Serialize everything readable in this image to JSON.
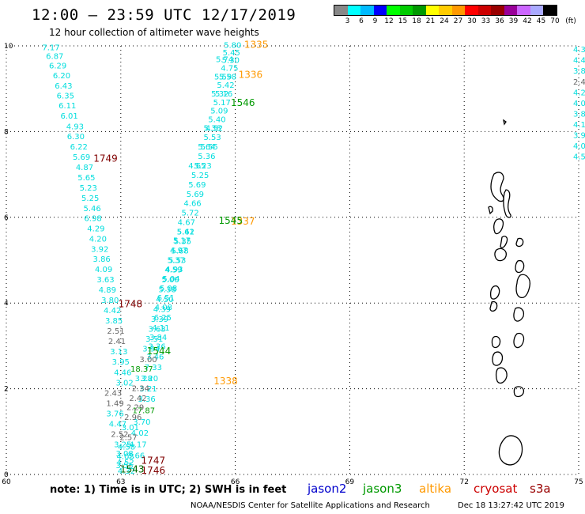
{
  "header": {
    "title": "12:00 – 23:59 UTC 12/17/2019",
    "subtitle": "12 hour collection of altimeter wave heights"
  },
  "legend": {
    "unit": "(ft)",
    "colors": [
      "#888888",
      "#00ffff",
      "#00bbff",
      "#0000ff",
      "#00ff00",
      "#00cc00",
      "#009900",
      "#ffff00",
      "#ffcc00",
      "#ff9900",
      "#ff0000",
      "#cc0000",
      "#990000",
      "#990099",
      "#cc66ff",
      "#aaaaff",
      "#000000"
    ],
    "labels": [
      "3",
      "6",
      "9",
      "12",
      "15",
      "18",
      "21",
      "24",
      "27",
      "30",
      "33",
      "36",
      "39",
      "42",
      "45",
      "70"
    ]
  },
  "map": {
    "x_ticks": [
      "60",
      "63",
      "66",
      "69",
      "72",
      "75"
    ],
    "y_ticks": [
      "0",
      "2",
      "4",
      "6",
      "8",
      "10"
    ],
    "x_values": [
      60,
      63,
      66,
      69,
      72,
      75
    ],
    "y_values": [
      0,
      2,
      4,
      6,
      8,
      10
    ],
    "lon_range": [
      60,
      75
    ],
    "lat_range": [
      0,
      10
    ],
    "colors": {
      "cyan": "#00dddd",
      "gray": "#666666",
      "green": "#009900",
      "darkgreen": "#006600",
      "orange": "#ff9900",
      "maroon": "#800000"
    },
    "wave_labels": [
      {
        "t": "7.17",
        "lon": 61.17,
        "lat": 9.9,
        "c": "cyan"
      },
      {
        "t": "6.87",
        "lon": 61.27,
        "lat": 9.7,
        "c": "cyan"
      },
      {
        "t": "6.29",
        "lon": 61.35,
        "lat": 9.47,
        "c": "cyan"
      },
      {
        "t": "6.20",
        "lon": 61.45,
        "lat": 9.24,
        "c": "cyan"
      },
      {
        "t": "6.43",
        "lon": 61.5,
        "lat": 9.0,
        "c": "cyan"
      },
      {
        "t": "6.35",
        "lon": 61.55,
        "lat": 8.77,
        "c": "cyan"
      },
      {
        "t": "6.11",
        "lon": 61.6,
        "lat": 8.54,
        "c": "cyan"
      },
      {
        "t": "6.01",
        "lon": 61.65,
        "lat": 8.3,
        "c": "cyan"
      },
      {
        "t": "4.93",
        "lon": 61.8,
        "lat": 8.05,
        "c": "cyan"
      },
      {
        "t": "6.30",
        "lon": 61.82,
        "lat": 7.82,
        "c": "cyan"
      },
      {
        "t": "6.22",
        "lon": 61.9,
        "lat": 7.58,
        "c": "cyan"
      },
      {
        "t": "5.69",
        "lon": 61.97,
        "lat": 7.34,
        "c": "cyan"
      },
      {
        "t": "4.87",
        "lon": 62.05,
        "lat": 7.1,
        "c": "cyan"
      },
      {
        "t": "5.65",
        "lon": 62.1,
        "lat": 6.86,
        "c": "cyan"
      },
      {
        "t": "5.23",
        "lon": 62.15,
        "lat": 6.62,
        "c": "cyan"
      },
      {
        "t": "5.25",
        "lon": 62.2,
        "lat": 6.38,
        "c": "cyan"
      },
      {
        "t": "5.46",
        "lon": 62.25,
        "lat": 6.14,
        "c": "cyan"
      },
      {
        "t": "6.98",
        "lon": 62.27,
        "lat": 5.91,
        "c": "cyan"
      },
      {
        "t": "4.29",
        "lon": 62.35,
        "lat": 5.67,
        "c": "cyan"
      },
      {
        "t": "4.20",
        "lon": 62.4,
        "lat": 5.43,
        "c": "cyan"
      },
      {
        "t": "3.92",
        "lon": 62.45,
        "lat": 5.19,
        "c": "cyan"
      },
      {
        "t": "3.86",
        "lon": 62.5,
        "lat": 4.96,
        "c": "cyan"
      },
      {
        "t": "4.09",
        "lon": 62.55,
        "lat": 4.72,
        "c": "cyan"
      },
      {
        "t": "3.63",
        "lon": 62.6,
        "lat": 4.48,
        "c": "cyan"
      },
      {
        "t": "4.89",
        "lon": 62.65,
        "lat": 4.24,
        "c": "cyan"
      },
      {
        "t": "3.80",
        "lon": 62.72,
        "lat": 4.0,
        "c": "cyan"
      },
      {
        "t": "4.42",
        "lon": 62.78,
        "lat": 3.76,
        "c": "cyan"
      },
      {
        "t": "3.85",
        "lon": 62.82,
        "lat": 3.52,
        "c": "cyan"
      },
      {
        "t": "2.51",
        "lon": 62.87,
        "lat": 3.28,
        "c": "gray"
      },
      {
        "t": "2.41",
        "lon": 62.9,
        "lat": 3.04,
        "c": "gray"
      },
      {
        "t": "3.13",
        "lon": 62.95,
        "lat": 2.8,
        "c": "cyan"
      },
      {
        "t": "3.95",
        "lon": 63.0,
        "lat": 2.56,
        "c": "cyan"
      },
      {
        "t": "4.46",
        "lon": 63.05,
        "lat": 2.32,
        "c": "cyan"
      },
      {
        "t": "3.02",
        "lon": 63.1,
        "lat": 2.08,
        "c": "cyan"
      },
      {
        "t": "2.43",
        "lon": 62.8,
        "lat": 1.84,
        "c": "gray"
      },
      {
        "t": "1.49",
        "lon": 62.85,
        "lat": 1.6,
        "c": "gray"
      },
      {
        "t": "3.76",
        "lon": 62.85,
        "lat": 1.36,
        "c": "cyan"
      },
      {
        "t": "4.47",
        "lon": 62.92,
        "lat": 1.12,
        "c": "cyan"
      },
      {
        "t": "2.52",
        "lon": 62.97,
        "lat": 0.88,
        "c": "gray"
      },
      {
        "t": "3.25",
        "lon": 63.05,
        "lat": 0.64,
        "c": "cyan"
      },
      {
        "t": "3.08",
        "lon": 63.1,
        "lat": 0.42,
        "c": "cyan"
      },
      {
        "t": "4.52",
        "lon": 63.12,
        "lat": 0.22,
        "c": "cyan"
      },
      {
        "t": "4.32",
        "lon": 63.15,
        "lat": 0.02,
        "c": "cyan"
      },
      {
        "t": "5.80",
        "lon": 65.93,
        "lat": 9.95,
        "c": "cyan"
      },
      {
        "t": "5.45",
        "lon": 65.9,
        "lat": 9.78,
        "c": "cyan"
      },
      {
        "t": "5.30",
        "lon": 65.88,
        "lat": 9.6,
        "c": "cyan"
      },
      {
        "t": "4.75",
        "lon": 65.85,
        "lat": 9.42,
        "c": "cyan"
      },
      {
        "t": "5.58",
        "lon": 65.8,
        "lat": 9.22,
        "c": "cyan"
      },
      {
        "t": "5.42",
        "lon": 65.75,
        "lat": 9.02,
        "c": "cyan"
      },
      {
        "t": "5.16",
        "lon": 65.7,
        "lat": 8.82,
        "c": "cyan"
      },
      {
        "t": "5.17",
        "lon": 65.65,
        "lat": 8.62,
        "c": "cyan"
      },
      {
        "t": "5.09",
        "lon": 65.58,
        "lat": 8.42,
        "c": "cyan"
      },
      {
        "t": "5.40",
        "lon": 65.52,
        "lat": 8.22,
        "c": "cyan"
      },
      {
        "t": "4.52",
        "lon": 65.45,
        "lat": 8.02,
        "c": "cyan"
      },
      {
        "t": "5.53",
        "lon": 65.4,
        "lat": 7.8,
        "c": "cyan"
      },
      {
        "t": "5.55",
        "lon": 65.32,
        "lat": 7.58,
        "c": "cyan"
      },
      {
        "t": "5.36",
        "lon": 65.25,
        "lat": 7.36,
        "c": "cyan"
      },
      {
        "t": "5.23",
        "lon": 65.15,
        "lat": 7.14,
        "c": "cyan"
      },
      {
        "t": "5.25",
        "lon": 65.08,
        "lat": 6.92,
        "c": "cyan"
      },
      {
        "t": "5.69",
        "lon": 65.0,
        "lat": 6.7,
        "c": "cyan"
      },
      {
        "t": "5.69",
        "lon": 64.95,
        "lat": 6.48,
        "c": "cyan"
      },
      {
        "t": "4.66",
        "lon": 64.88,
        "lat": 6.26,
        "c": "cyan"
      },
      {
        "t": "5.72",
        "lon": 64.82,
        "lat": 6.04,
        "c": "cyan"
      },
      {
        "t": "4.67",
        "lon": 64.72,
        "lat": 5.82,
        "c": "cyan"
      },
      {
        "t": "5.42",
        "lon": 64.7,
        "lat": 5.6,
        "c": "cyan"
      },
      {
        "t": "5.35",
        "lon": 64.62,
        "lat": 5.38,
        "c": "cyan"
      },
      {
        "t": "5.68",
        "lon": 64.55,
        "lat": 5.16,
        "c": "cyan"
      },
      {
        "t": "5.53",
        "lon": 64.48,
        "lat": 4.94,
        "c": "cyan"
      },
      {
        "t": "4.93",
        "lon": 64.4,
        "lat": 4.72,
        "c": "cyan"
      },
      {
        "t": "5.04",
        "lon": 64.32,
        "lat": 4.5,
        "c": "cyan"
      },
      {
        "t": "5.08",
        "lon": 64.25,
        "lat": 4.28,
        "c": "cyan"
      },
      {
        "t": "6.51",
        "lon": 64.18,
        "lat": 4.06,
        "c": "cyan"
      },
      {
        "t": "4.08",
        "lon": 64.12,
        "lat": 3.84,
        "c": "cyan"
      },
      {
        "t": "6.25",
        "lon": 64.1,
        "lat": 3.6,
        "c": "cyan"
      },
      {
        "t": "4.11",
        "lon": 64.05,
        "lat": 3.36,
        "c": "cyan"
      },
      {
        "t": "3.84",
        "lon": 63.98,
        "lat": 3.14,
        "c": "cyan"
      },
      {
        "t": "3.36",
        "lon": 63.95,
        "lat": 2.92,
        "c": "cyan"
      },
      {
        "t": "3.46",
        "lon": 63.9,
        "lat": 2.68,
        "c": "cyan"
      },
      {
        "t": "7.33",
        "lon": 63.85,
        "lat": 2.44,
        "c": "cyan"
      },
      {
        "t": "3.20",
        "lon": 63.75,
        "lat": 2.18,
        "c": "cyan"
      },
      {
        "t": "3.21",
        "lon": 63.72,
        "lat": 1.94,
        "c": "cyan"
      },
      {
        "t": "3.36",
        "lon": 63.68,
        "lat": 1.7,
        "c": "cyan"
      },
      {
        "t": "17.87",
        "lon": 63.6,
        "lat": 1.43,
        "c": "green"
      },
      {
        "t": "3.70",
        "lon": 63.55,
        "lat": 1.16,
        "c": "cyan"
      },
      {
        "t": "4.02",
        "lon": 63.5,
        "lat": 0.9,
        "c": "cyan"
      },
      {
        "t": "4.17",
        "lon": 63.45,
        "lat": 0.64,
        "c": "cyan"
      },
      {
        "t": "3.66",
        "lon": 63.4,
        "lat": 0.38,
        "c": "cyan"
      },
      {
        "t": "5.74",
        "lon": 65.72,
        "lat": 9.62,
        "c": "cyan"
      },
      {
        "t": "5.59",
        "lon": 65.68,
        "lat": 9.22,
        "c": "cyan"
      },
      {
        "t": "5.32",
        "lon": 65.6,
        "lat": 8.82,
        "c": "cyan"
      },
      {
        "t": "5.38",
        "lon": 65.4,
        "lat": 8.02,
        "c": "cyan"
      },
      {
        "t": "5.64",
        "lon": 65.25,
        "lat": 7.58,
        "c": "cyan"
      },
      {
        "t": "4.65",
        "lon": 65.0,
        "lat": 7.14,
        "c": "cyan"
      },
      {
        "t": "5.61",
        "lon": 64.7,
        "lat": 5.6,
        "c": "cyan"
      },
      {
        "t": "5.17",
        "lon": 64.6,
        "lat": 5.4,
        "c": "cyan"
      },
      {
        "t": "4.97",
        "lon": 64.52,
        "lat": 5.17,
        "c": "cyan"
      },
      {
        "t": "5.37",
        "lon": 64.45,
        "lat": 4.94,
        "c": "cyan"
      },
      {
        "t": "4.59",
        "lon": 64.38,
        "lat": 4.71,
        "c": "cyan"
      },
      {
        "t": "5.00",
        "lon": 64.3,
        "lat": 4.48,
        "c": "cyan"
      },
      {
        "t": "5.38",
        "lon": 64.22,
        "lat": 4.25,
        "c": "cyan"
      },
      {
        "t": "4.50",
        "lon": 64.15,
        "lat": 4.02,
        "c": "cyan"
      },
      {
        "t": "4.39",
        "lon": 64.08,
        "lat": 3.79,
        "c": "cyan"
      },
      {
        "t": "3.39",
        "lon": 64.02,
        "lat": 3.56,
        "c": "cyan"
      },
      {
        "t": "3.63",
        "lon": 63.95,
        "lat": 3.33,
        "c": "cyan"
      },
      {
        "t": "3.51",
        "lon": 63.88,
        "lat": 3.1,
        "c": "cyan"
      },
      {
        "t": "3.94",
        "lon": 63.8,
        "lat": 2.87,
        "c": "cyan"
      },
      {
        "t": "3.00",
        "lon": 63.72,
        "lat": 2.62,
        "c": "gray"
      },
      {
        "t": "18.37",
        "lon": 63.55,
        "lat": 2.4,
        "c": "green"
      },
      {
        "t": "3.28",
        "lon": 63.6,
        "lat": 2.18,
        "c": "cyan"
      },
      {
        "t": "2.34",
        "lon": 63.52,
        "lat": 1.95,
        "c": "gray"
      },
      {
        "t": "2.42",
        "lon": 63.45,
        "lat": 1.72,
        "c": "gray"
      },
      {
        "t": "2.29",
        "lon": 63.38,
        "lat": 1.5,
        "c": "gray"
      },
      {
        "t": "2.96",
        "lon": 63.32,
        "lat": 1.27,
        "c": "gray"
      },
      {
        "t": "3.01",
        "lon": 63.25,
        "lat": 1.03,
        "c": "cyan"
      },
      {
        "t": "2.57",
        "lon": 63.2,
        "lat": 0.8,
        "c": "gray"
      },
      {
        "t": "4.58",
        "lon": 63.15,
        "lat": 0.58,
        "c": "cyan"
      },
      {
        "t": "4.03",
        "lon": 63.12,
        "lat": 0.36,
        "c": "cyan"
      },
      {
        "t": "3.55",
        "lon": 63.1,
        "lat": 0.15,
        "c": "cyan"
      }
    ],
    "track_labels": [
      {
        "t": "1335",
        "lon": 66.55,
        "lat": 9.95,
        "c": "orange"
      },
      {
        "t": "1336",
        "lon": 66.4,
        "lat": 9.25,
        "c": "orange"
      },
      {
        "t": "1546",
        "lon": 66.2,
        "lat": 8.6,
        "c": "green"
      },
      {
        "t": "1749",
        "lon": 62.6,
        "lat": 7.3,
        "c": "maroon"
      },
      {
        "t": "1337",
        "lon": 66.2,
        "lat": 5.83,
        "c": "orange"
      },
      {
        "t": "1545",
        "lon": 65.88,
        "lat": 5.85,
        "c": "green"
      },
      {
        "t": "1748",
        "lon": 63.25,
        "lat": 3.9,
        "c": "maroon"
      },
      {
        "t": "1544",
        "lon": 64.0,
        "lat": 2.8,
        "c": "green"
      },
      {
        "t": "1338",
        "lon": 65.75,
        "lat": 2.1,
        "c": "orange"
      },
      {
        "t": "1747",
        "lon": 63.85,
        "lat": 0.25,
        "c": "maroon"
      },
      {
        "t": "1746",
        "lon": 63.85,
        "lat": 0.02,
        "c": "maroon"
      },
      {
        "t": "1543",
        "lon": 63.3,
        "lat": 0.05,
        "c": "darkgreen"
      }
    ],
    "edge_labels": [
      {
        "t": "4.3",
        "lat": 9.85
      },
      {
        "t": "4.4",
        "lat": 9.6
      },
      {
        "t": "3.8",
        "lat": 9.35
      },
      {
        "t": "2.4",
        "lat": 9.1
      },
      {
        "t": "4.2",
        "lat": 8.85
      },
      {
        "t": "4.0",
        "lat": 8.6
      },
      {
        "t": "3.8",
        "lat": 8.35
      },
      {
        "t": "4.1",
        "lat": 8.1
      },
      {
        "t": "3.9",
        "lat": 7.85
      },
      {
        "t": "4.0",
        "lat": 7.6
      },
      {
        "t": "4.5",
        "lat": 7.35
      }
    ]
  },
  "footer": {
    "note": "note:  1) Time is in UTC;  2) SWH is in feet",
    "satellites": [
      {
        "name": "jason2",
        "color": "#0000cc"
      },
      {
        "name": "jason3",
        "color": "#009900"
      },
      {
        "name": "altika",
        "color": "#ff9900"
      },
      {
        "name": "cryosat",
        "color": "#cc0000"
      },
      {
        "name": "s3a",
        "color": "#990000"
      }
    ],
    "credit": "NOAA/NESDIS Center for Satellite Applications and Research",
    "timestamp": "Dec 18 13:27:42 UTC 2019"
  }
}
